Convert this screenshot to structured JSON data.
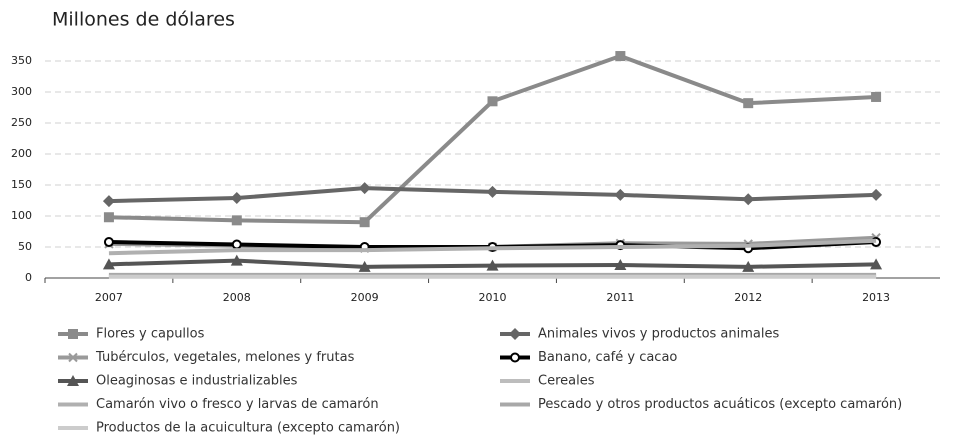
{
  "chart_data": {
    "type": "line",
    "title": "Millones de dólares",
    "categories": [
      "2007",
      "2008",
      "2009",
      "2010",
      "2011",
      "2012",
      "2013"
    ],
    "ylim": [
      0,
      350
    ],
    "yticks": [
      0,
      50,
      100,
      150,
      200,
      250,
      300,
      350
    ],
    "grid": true,
    "series": [
      {
        "name": "Flores y capullos",
        "color": "#8a8a8a",
        "marker": "square",
        "values": [
          98,
          93,
          90,
          285,
          358,
          282,
          292
        ]
      },
      {
        "name": "Animales vivos y productos animales",
        "color": "#666666",
        "marker": "diamond",
        "values": [
          124,
          129,
          145,
          139,
          134,
          127,
          134
        ]
      },
      {
        "name": "Tubérculos, vegetales, melones y frutas",
        "color": "#9a9a9a",
        "marker": "x",
        "values": [
          55,
          52,
          48,
          50,
          56,
          55,
          65
        ]
      },
      {
        "name": "Banano, café y cacao",
        "color": "#000000",
        "marker": "circle",
        "values": [
          58,
          54,
          50,
          50,
          53,
          48,
          58
        ]
      },
      {
        "name": "Oleaginosas e industrializables",
        "color": "#555555",
        "marker": "triangle",
        "values": [
          22,
          28,
          18,
          20,
          21,
          18,
          22
        ]
      },
      {
        "name": "Cereales",
        "color": "#bdbdbd",
        "marker": "none",
        "values": [
          3,
          3,
          3,
          3,
          3,
          3,
          3
        ]
      },
      {
        "name": "Camarón vivo o fresco y larvas de camarón",
        "color": "#b0b0b0",
        "marker": "none",
        "values": [
          40,
          45,
          45,
          48,
          50,
          52,
          60
        ]
      },
      {
        "name": "Pescado y otros productos acuáticos (excepto camarón)",
        "color": "#a8a8a8",
        "marker": "none",
        "values": [
          5,
          5,
          5,
          5,
          5,
          5,
          5
        ]
      },
      {
        "name": "Productos de la acuicultura (excepto camarón)",
        "color": "#cccccc",
        "marker": "none",
        "values": [
          2,
          2,
          2,
          2,
          2,
          2,
          2
        ]
      }
    ]
  }
}
